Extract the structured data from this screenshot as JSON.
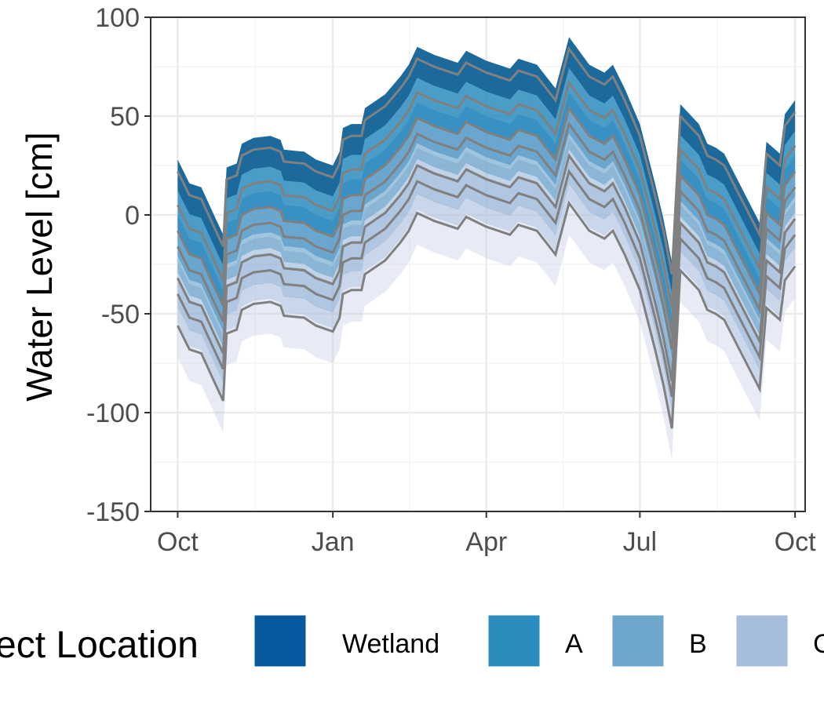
{
  "chart_data": {
    "type": "area",
    "title": "",
    "xlabel": "",
    "ylabel": "Water Level [cm]",
    "xlim": [
      "2019-09-15",
      "2020-10-07"
    ],
    "ylim": [
      -150,
      100
    ],
    "x_ticks": [
      {
        "date": "2019-10-01",
        "label": "Oct"
      },
      {
        "date": "2020-01-01",
        "label": "Jan"
      },
      {
        "date": "2020-04-01",
        "label": "Apr"
      },
      {
        "date": "2020-07-01",
        "label": "Jul"
      },
      {
        "date": "2020-10-01",
        "label": "Oct"
      }
    ],
    "y_ticks": [
      100,
      50,
      0,
      -50,
      -100,
      -150
    ],
    "grid": true,
    "legend": {
      "title": "ect Location",
      "position": "bottom",
      "entries": [
        {
          "label": "Wetland",
          "color": "#08589e"
        },
        {
          "label": "A",
          "color": "#2b8cbe"
        },
        {
          "label": "B",
          "color": "#6fa6cc"
        },
        {
          "label": "C",
          "color": "#a6bddb"
        }
      ]
    },
    "line_color": "#808080",
    "series": [
      {
        "name": "Wetland",
        "offset": 0,
        "band": 6,
        "color": "#1c6a9c",
        "opacity": 1.0
      },
      {
        "name": "A",
        "offset": -17,
        "band": 8,
        "color": "#2b8cbe",
        "opacity": 0.85
      },
      {
        "name": "",
        "offset": -30,
        "band": 8,
        "color": "#5d9ec9",
        "opacity": 0.8
      },
      {
        "name": "B",
        "offset": -38,
        "band": 8,
        "color": "#6fa6cc",
        "opacity": 0.65
      },
      {
        "name": "",
        "offset": -54,
        "band": 9,
        "color": "#8fb1d6",
        "opacity": 0.55
      },
      {
        "name": "C",
        "offset": -62,
        "band": 9,
        "color": "#a6bddb",
        "opacity": 0.45
      },
      {
        "name": "",
        "offset": -78,
        "band": 10,
        "color": "#c6cde5",
        "opacity": 0.4
      }
    ],
    "wetland_series": [
      [
        "2019-10-01",
        22
      ],
      [
        "2019-10-08",
        10
      ],
      [
        "2019-10-15",
        8
      ],
      [
        "2019-10-22",
        -5
      ],
      [
        "2019-10-28",
        -16
      ],
      [
        "2019-10-30",
        18
      ],
      [
        "2019-11-05",
        20
      ],
      [
        "2019-11-08",
        30
      ],
      [
        "2019-11-15",
        33
      ],
      [
        "2019-11-25",
        34
      ],
      [
        "2019-12-01",
        32
      ],
      [
        "2019-12-03",
        27
      ],
      [
        "2019-12-15",
        26
      ],
      [
        "2019-12-22",
        22
      ],
      [
        "2020-01-01",
        19
      ],
      [
        "2020-01-05",
        26
      ],
      [
        "2020-01-07",
        38
      ],
      [
        "2020-01-12",
        40
      ],
      [
        "2020-01-18",
        40
      ],
      [
        "2020-01-20",
        48
      ],
      [
        "2020-02-01",
        55
      ],
      [
        "2020-02-10",
        64
      ],
      [
        "2020-02-15",
        70
      ],
      [
        "2020-02-20",
        79
      ],
      [
        "2020-03-01",
        75
      ],
      [
        "2020-03-15",
        71
      ],
      [
        "2020-03-20",
        77
      ],
      [
        "2020-04-01",
        72
      ],
      [
        "2020-04-15",
        68
      ],
      [
        "2020-04-20",
        73
      ],
      [
        "2020-05-01",
        70
      ],
      [
        "2020-05-12",
        58
      ],
      [
        "2020-05-20",
        84
      ],
      [
        "2020-06-01",
        70
      ],
      [
        "2020-06-10",
        66
      ],
      [
        "2020-06-15",
        70
      ],
      [
        "2020-06-22",
        58
      ],
      [
        "2020-07-01",
        40
      ],
      [
        "2020-07-10",
        10
      ],
      [
        "2020-07-15",
        -8
      ],
      [
        "2020-07-20",
        -30
      ],
      [
        "2020-07-25",
        50
      ],
      [
        "2020-08-05",
        40
      ],
      [
        "2020-08-10",
        30
      ],
      [
        "2020-08-15",
        28
      ],
      [
        "2020-08-20",
        25
      ],
      [
        "2020-09-01",
        5
      ],
      [
        "2020-09-10",
        -10
      ],
      [
        "2020-09-14",
        31
      ],
      [
        "2020-09-22",
        25
      ],
      [
        "2020-09-25",
        45
      ],
      [
        "2020-10-01",
        52
      ]
    ]
  }
}
